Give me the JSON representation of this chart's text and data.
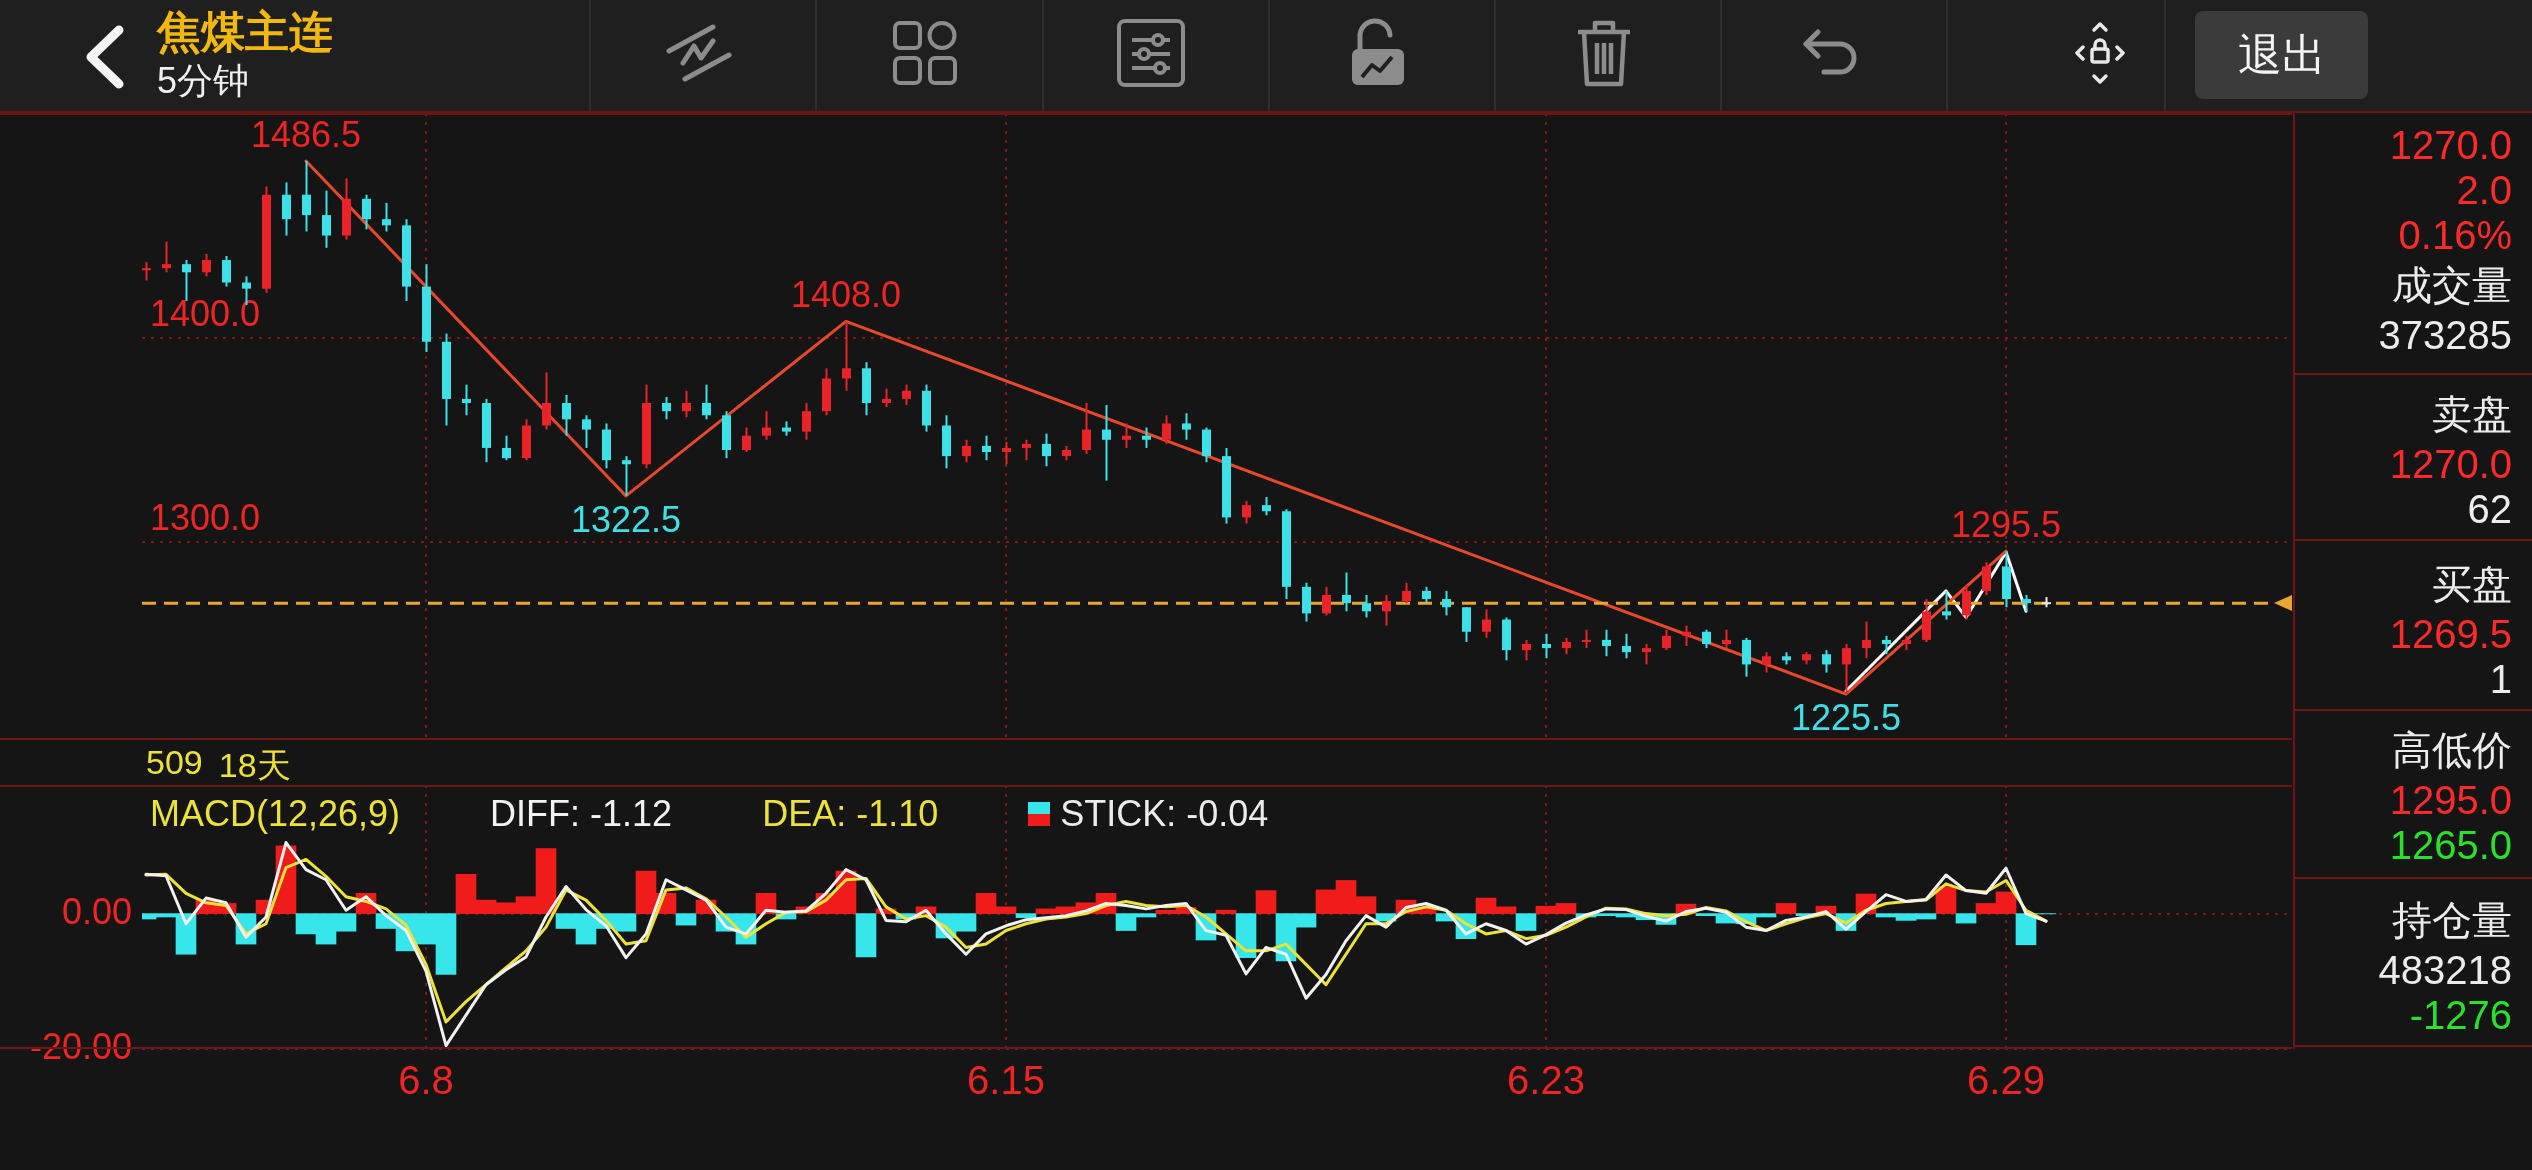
{
  "chart_data": [
    {
      "type": "candlestick",
      "title": "焦煤主连",
      "subtitle": "5分钟",
      "marker": "none",
      "grid": true,
      "tick_labels": "y",
      "categories": [
        null,
        null,
        null,
        null,
        null,
        null,
        null,
        null,
        null,
        null,
        null,
        null,
        null,
        null,
        "6.8",
        null,
        null,
        null,
        null,
        null,
        null,
        null,
        null,
        null,
        null,
        null,
        null,
        null,
        null,
        null,
        null,
        null,
        null,
        null,
        null,
        null,
        null,
        null,
        null,
        null,
        null,
        null,
        null,
        "6.15",
        null,
        null,
        null,
        null,
        null,
        null,
        null,
        null,
        null,
        null,
        null,
        null,
        null,
        null,
        null,
        null,
        null,
        null,
        null,
        null,
        null,
        null,
        null,
        null,
        null,
        null,
        "6.23",
        null,
        null,
        null,
        null,
        null,
        null,
        null,
        null,
        null,
        null,
        null,
        null,
        null,
        null,
        null,
        null,
        null,
        null,
        null,
        null,
        null,
        null,
        "6.29",
        null,
        null
      ],
      "ylim": [
        1203,
        1510
      ],
      "yticks": [
        {
          "value": 1400,
          "label": "1400.0"
        },
        {
          "value": 1300,
          "label": "1300.0"
        }
      ],
      "ref_lines": [
        {
          "axis": "y",
          "value": 1270,
          "color": "#e8a532",
          "line_style": "dashed"
        }
      ],
      "annotations": [
        "509",
        "18天"
      ],
      "series": [
        {
          "type": "candlestick",
          "ohlc": [
            [
              1433,
              1437,
              1428,
              1434
            ],
            [
              1434,
              1447,
              1432,
              1436
            ],
            [
              1436,
              1438,
              1418,
              1432
            ],
            [
              1432,
              1441,
              1430,
              1438
            ],
            [
              1438,
              1440,
              1425,
              1427
            ],
            [
              1427,
              1430,
              1416,
              1424
            ],
            [
              1424,
              1474,
              1422,
              1470
            ],
            [
              1470,
              1476,
              1450,
              1458
            ],
            [
              1470,
              1486.5,
              1452,
              1460
            ],
            [
              1460,
              1472,
              1444,
              1450
            ],
            [
              1450,
              1478,
              1448,
              1468
            ],
            [
              1468,
              1470,
              1453,
              1458
            ],
            [
              1458,
              1466,
              1452,
              1455
            ],
            [
              1455,
              1458,
              1418,
              1425
            ],
            [
              1425,
              1436,
              1393,
              1398
            ],
            [
              1398,
              1402,
              1357,
              1370
            ],
            [
              1370,
              1377,
              1362,
              1368
            ],
            [
              1368,
              1370,
              1339,
              1346
            ],
            [
              1346,
              1352,
              1340,
              1341
            ],
            [
              1341,
              1360,
              1340,
              1357
            ],
            [
              1357,
              1383,
              1355,
              1368
            ],
            [
              1368,
              1372,
              1352,
              1360
            ],
            [
              1360,
              1362,
              1346,
              1355
            ],
            [
              1355,
              1358,
              1336,
              1340
            ],
            [
              1340,
              1342,
              1322.5,
              1338
            ],
            [
              1338,
              1377,
              1336,
              1368
            ],
            [
              1368,
              1371,
              1360,
              1364
            ],
            [
              1364,
              1374,
              1361,
              1368
            ],
            [
              1368,
              1377,
              1360,
              1362
            ],
            [
              1362,
              1364,
              1341,
              1345
            ],
            [
              1345,
              1356,
              1344,
              1352
            ],
            [
              1352,
              1364,
              1350,
              1356
            ],
            [
              1356,
              1359,
              1352,
              1354
            ],
            [
              1354,
              1368,
              1350,
              1364
            ],
            [
              1364,
              1385,
              1362,
              1380
            ],
            [
              1380,
              1408,
              1374,
              1385
            ],
            [
              1385,
              1388,
              1362,
              1368
            ],
            [
              1368,
              1375,
              1366,
              1370
            ],
            [
              1370,
              1377,
              1367,
              1374
            ],
            [
              1374,
              1377,
              1354,
              1357
            ],
            [
              1357,
              1362,
              1336,
              1342
            ],
            [
              1342,
              1350,
              1339,
              1347
            ],
            [
              1347,
              1352,
              1340,
              1344
            ],
            [
              1344,
              1349,
              1338,
              1346
            ],
            [
              1346,
              1350,
              1340,
              1348
            ],
            [
              1348,
              1353,
              1337,
              1342
            ],
            [
              1342,
              1347,
              1340,
              1345
            ],
            [
              1345,
              1368,
              1343,
              1355
            ],
            [
              1355,
              1367,
              1330,
              1350
            ],
            [
              1350,
              1358,
              1346,
              1352
            ],
            [
              1352,
              1356,
              1346,
              1350
            ],
            [
              1350,
              1362,
              1348,
              1358
            ],
            [
              1358,
              1363,
              1350,
              1355
            ],
            [
              1355,
              1356,
              1339,
              1342
            ],
            [
              1342,
              1346,
              1309,
              1312
            ],
            [
              1312,
              1320,
              1309,
              1318
            ],
            [
              1318,
              1322,
              1313,
              1315
            ],
            [
              1315,
              1316,
              1272,
              1278
            ],
            [
              1278,
              1280,
              1261,
              1265
            ],
            [
              1265,
              1278,
              1264,
              1274
            ],
            [
              1274,
              1285,
              1266,
              1270
            ],
            [
              1270,
              1274,
              1263,
              1266
            ],
            [
              1266,
              1274,
              1259,
              1271
            ],
            [
              1271,
              1280,
              1270,
              1276
            ],
            [
              1276,
              1278,
              1270,
              1272
            ],
            [
              1272,
              1276,
              1264,
              1268
            ],
            [
              1268,
              1268,
              1251,
              1256
            ],
            [
              1256,
              1267,
              1253,
              1262
            ],
            [
              1262,
              1263,
              1242,
              1247
            ],
            [
              1247,
              1252,
              1242,
              1250
            ],
            [
              1250,
              1255,
              1243,
              1248
            ],
            [
              1248,
              1253,
              1245,
              1251
            ],
            [
              1251,
              1257,
              1248,
              1252
            ],
            [
              1252,
              1257,
              1244,
              1249
            ],
            [
              1249,
              1255,
              1243,
              1246
            ],
            [
              1246,
              1250,
              1240,
              1248
            ],
            [
              1248,
              1257,
              1247,
              1254
            ],
            [
              1254,
              1259,
              1249,
              1256
            ],
            [
              1256,
              1257,
              1248,
              1250
            ],
            [
              1250,
              1257,
              1248,
              1252
            ],
            [
              1252,
              1253,
              1234,
              1240
            ],
            [
              1240,
              1246,
              1236,
              1244
            ],
            [
              1244,
              1246,
              1240,
              1242
            ],
            [
              1242,
              1246,
              1240,
              1245
            ],
            [
              1245,
              1247,
              1236,
              1240
            ],
            [
              1240,
              1250,
              1225.5,
              1248
            ],
            [
              1248,
              1261,
              1243,
              1252
            ],
            [
              1252,
              1254,
              1245,
              1250
            ],
            [
              1250,
              1254,
              1247,
              1252
            ],
            [
              1252,
              1272,
              1251,
              1266
            ],
            [
              1266,
              1276,
              1262,
              1264
            ],
            [
              1264,
              1279,
              1262,
              1276
            ],
            [
              1276,
              1290,
              1274,
              1288
            ],
            [
              1288,
              1295.5,
              1268,
              1272
            ],
            [
              1272,
              1274,
              1266,
              1270
            ],
            [
              1270,
              1273,
              1268,
              1270
            ]
          ],
          "colors": [
            "#e8232a",
            "#e8232a",
            "#3de0e6",
            "#e8232a",
            "#3de0e6",
            "#3de0e6",
            "#e8232a",
            "#3de0e6",
            "#3de0e6",
            "#3de0e6",
            "#e8232a",
            "#3de0e6",
            "#3de0e6",
            "#3de0e6",
            "#3de0e6",
            "#3de0e6",
            "#3de0e6",
            "#3de0e6",
            "#3de0e6",
            "#e8232a",
            "#e8232a",
            "#3de0e6",
            "#3de0e6",
            "#3de0e6",
            "#3de0e6",
            "#e8232a",
            "#3de0e6",
            "#e8232a",
            "#3de0e6",
            "#3de0e6",
            "#e8232a",
            "#e8232a",
            "#3de0e6",
            "#e8232a",
            "#e8232a",
            "#e8232a",
            "#3de0e6",
            "#e8232a",
            "#e8232a",
            "#3de0e6",
            "#3de0e6",
            "#e8232a",
            "#3de0e6",
            "#e8232a",
            "#e8232a",
            "#3de0e6",
            "#e8232a",
            "#e8232a",
            "#3de0e6",
            "#e8232a",
            "#3de0e6",
            "#e8232a",
            "#3de0e6",
            "#3de0e6",
            "#3de0e6",
            "#e8232a",
            "#3de0e6",
            "#3de0e6",
            "#3de0e6",
            "#e8232a",
            "#3de0e6",
            "#3de0e6",
            "#e8232a",
            "#e8232a",
            "#3de0e6",
            "#3de0e6",
            "#3de0e6",
            "#e8232a",
            "#3de0e6",
            "#e8232a",
            "#3de0e6",
            "#e8232a",
            "#e8232a",
            "#3de0e6",
            "#3de0e6",
            "#e8232a",
            "#e8232a",
            "#e8232a",
            "#3de0e6",
            "#e8232a",
            "#3de0e6",
            "#e8232a",
            "#3de0e6",
            "#e8232a",
            "#3de0e6",
            "#e8232a",
            "#e8232a",
            "#3de0e6",
            "#e8232a",
            "#e8232a",
            "#3de0e6",
            "#e8232a",
            "#e8232a",
            "#3de0e6",
            "#3de0e6",
            "#e6e6e6"
          ]
        },
        {
          "type": "line",
          "color": "#e8482c",
          "values": [
            null,
            null,
            null,
            null,
            null,
            null,
            null,
            null,
            1486.5,
            null,
            null,
            null,
            null,
            null,
            null,
            null,
            null,
            null,
            null,
            null,
            null,
            null,
            null,
            null,
            1322.5,
            null,
            null,
            null,
            null,
            null,
            null,
            null,
            null,
            null,
            null,
            1408,
            null,
            null,
            null,
            null,
            null,
            null,
            null,
            null,
            null,
            null,
            null,
            null,
            null,
            null,
            null,
            null,
            null,
            null,
            null,
            null,
            null,
            null,
            null,
            null,
            null,
            null,
            null,
            null,
            null,
            null,
            null,
            null,
            null,
            null,
            null,
            null,
            null,
            null,
            null,
            null,
            null,
            null,
            null,
            null,
            null,
            null,
            null,
            null,
            null,
            1225.5,
            null,
            null,
            null,
            null,
            null,
            null,
            null,
            1295.5,
            null,
            null
          ],
          "value_labels": [
            null,
            null,
            null,
            null,
            null,
            null,
            null,
            null,
            "1486.5",
            null,
            null,
            null,
            null,
            null,
            null,
            null,
            null,
            null,
            null,
            null,
            null,
            null,
            null,
            null,
            "1322.5",
            null,
            null,
            null,
            null,
            null,
            null,
            null,
            null,
            null,
            null,
            "1408.0",
            null,
            null,
            null,
            null,
            null,
            null,
            null,
            null,
            null,
            null,
            null,
            null,
            null,
            null,
            null,
            null,
            null,
            null,
            null,
            null,
            null,
            null,
            null,
            null,
            null,
            null,
            null,
            null,
            null,
            null,
            null,
            null,
            null,
            null,
            null,
            null,
            null,
            null,
            null,
            null,
            null,
            null,
            null,
            null,
            null,
            null,
            null,
            null,
            null,
            "1225.5",
            null,
            null,
            null,
            null,
            null,
            null,
            null,
            "1295.5",
            null,
            null
          ]
        },
        {
          "type": "line",
          "color": "#ffffff",
          "values": [
            null,
            null,
            null,
            null,
            null,
            null,
            null,
            null,
            null,
            null,
            null,
            null,
            null,
            null,
            null,
            null,
            null,
            null,
            null,
            null,
            null,
            null,
            null,
            null,
            null,
            null,
            null,
            null,
            null,
            null,
            null,
            null,
            null,
            null,
            null,
            null,
            null,
            null,
            null,
            null,
            null,
            null,
            null,
            null,
            null,
            null,
            null,
            null,
            null,
            null,
            null,
            null,
            null,
            null,
            null,
            null,
            null,
            null,
            null,
            null,
            null,
            null,
            null,
            null,
            null,
            null,
            null,
            null,
            null,
            null,
            null,
            null,
            null,
            null,
            null,
            null,
            null,
            null,
            null,
            null,
            null,
            null,
            null,
            null,
            null,
            1227,
            null,
            null,
            null,
            null,
            1276,
            1263,
            null,
            1295,
            1266,
            null
          ]
        }
      ]
    },
    {
      "type": "line",
      "legend_title": "MACD(12,26,9)",
      "legend": "top left",
      "marker": "none",
      "grid": true,
      "categories": [
        null,
        null,
        null,
        null,
        null,
        null,
        null,
        null,
        null,
        null,
        null,
        null,
        null,
        null,
        "6.8",
        null,
        null,
        null,
        null,
        null,
        null,
        null,
        null,
        null,
        null,
        null,
        null,
        null,
        null,
        null,
        null,
        null,
        null,
        null,
        null,
        null,
        null,
        null,
        null,
        null,
        null,
        null,
        null,
        "6.15",
        null,
        null,
        null,
        null,
        null,
        null,
        null,
        null,
        null,
        null,
        null,
        null,
        null,
        null,
        null,
        null,
        null,
        null,
        null,
        null,
        null,
        null,
        null,
        null,
        null,
        null,
        "6.23",
        null,
        null,
        null,
        null,
        null,
        null,
        null,
        null,
        null,
        null,
        null,
        null,
        null,
        null,
        null,
        null,
        null,
        null,
        null,
        null,
        null,
        null,
        "6.29",
        null,
        null
      ],
      "ylim": [
        -20,
        19
      ],
      "yticks": [
        {
          "value": 0,
          "label": "0.00"
        },
        {
          "value": -20,
          "label": "-20.00"
        }
      ],
      "series": [
        {
          "name": "DIFF: -1.12",
          "type": "line",
          "color": "#f2f2f2",
          "values": [
            5.8,
            5.6,
            -1.5,
            2.3,
            1.6,
            -3.5,
            -0.5,
            10.5,
            6.5,
            5,
            0.5,
            2.5,
            -0.3,
            -2.5,
            -8.5,
            -19.5,
            -15,
            -10.5,
            -8.3,
            -6.4,
            -0.5,
            4,
            0.6,
            -1.8,
            -6.5,
            -3,
            5,
            3.5,
            2,
            -2,
            -3,
            0.5,
            0.2,
            0.4,
            3,
            6.5,
            5,
            -1,
            -1.2,
            0.5,
            -3,
            -6,
            -3,
            -1.8,
            -0.9,
            -0.6,
            -0.3,
            0.4,
            1.5,
            1.2,
            0.7,
            1.2,
            1.5,
            -2.5,
            -3.2,
            -8.9,
            -5,
            -6,
            -12.5,
            -9,
            -4,
            -0.3,
            -2,
            0.9,
            1.5,
            0.5,
            -3,
            -1.5,
            -2.5,
            -4.5,
            -3.1,
            -1.4,
            -0.2,
            0.7,
            0.6,
            -0.4,
            -1.1,
            0.3,
            0.8,
            0.2,
            -2,
            -2.5,
            -1,
            -0.5,
            0.3,
            -2.3,
            0.3,
            2.8,
            1.8,
            2.1,
            5.7,
            3.4,
            3,
            6.7,
            0,
            -1.12
          ]
        },
        {
          "name": "DEA: -1.10",
          "type": "line",
          "color": "#ece23a",
          "values": [
            5.7,
            5.8,
            3,
            1.6,
            1.2,
            -3,
            -1.5,
            6.8,
            8,
            5.5,
            2.5,
            1.8,
            0.7,
            -1.7,
            -7.5,
            -16,
            -13,
            -10.5,
            -8,
            -5.5,
            -2,
            3.5,
            2,
            -1,
            -4.5,
            -4,
            3.5,
            3.8,
            2.2,
            -0.5,
            -3.5,
            -1.5,
            0.2,
            0.3,
            2,
            5,
            5.2,
            1,
            -0.8,
            -0.3,
            -2,
            -5,
            -4.5,
            -2.5,
            -1.5,
            -0.8,
            -0.5,
            0,
            1.2,
            1.8,
            1.2,
            1,
            1.2,
            -0.5,
            -3,
            -5.5,
            -5.5,
            -4.5,
            -7.5,
            -10.5,
            -6,
            -1.5,
            -1.5,
            0.3,
            1,
            0.5,
            -1.5,
            -3,
            -2.5,
            -3.7,
            -3.2,
            -2,
            -0.5,
            0.8,
            0.7,
            0,
            -0.3,
            -0.1,
            0.9,
            0.4,
            -1.2,
            -2.5,
            -1.5,
            -0.6,
            0,
            -1.4,
            0.5,
            1.5,
            1.8,
            2,
            4.4,
            3.4,
            3.2,
            4.9,
            0.5,
            -1.1
          ]
        },
        {
          "name": "STICK: -0.04",
          "type": "bar",
          "values": [
            -0.8,
            -0.5,
            -6,
            2,
            1.5,
            -4.5,
            2,
            10,
            -3,
            -4.5,
            -2.6,
            3,
            -2.2,
            -5.5,
            -4.5,
            -9,
            5.8,
            2,
            1.6,
            2.5,
            9.6,
            -2.2,
            -4.5,
            -2.2,
            -2.6,
            6.3,
            3,
            -1.7,
            2,
            -2.6,
            -4.5,
            3,
            -0.8,
            1,
            3,
            6.3,
            -6.4,
            0.7,
            -0.8,
            1,
            -3.6,
            -2.6,
            3,
            1,
            -0.6,
            0.7,
            1,
            1.6,
            3,
            -2.5,
            -0.5,
            0.5,
            0.9,
            -3.9,
            0.5,
            -6.5,
            3.4,
            -7,
            -2,
            3.5,
            4.9,
            2.5,
            -1.1,
            2,
            0.8,
            -1.1,
            -3.7,
            2.3,
            1,
            -2.5,
            1.1,
            1.5,
            -0.5,
            -0.3,
            -0.5,
            -0.9,
            -1.6,
            1.4,
            -0.3,
            -1.4,
            -1.5,
            -0.5,
            1.5,
            -0.3,
            1.1,
            -2.5,
            2.9,
            -0.5,
            -1,
            -0.8,
            4,
            -1.4,
            1.5,
            3.2,
            -4.6,
            -0.04
          ],
          "colors": [
            "#36e6ea",
            "#36e6ea",
            "#36e6ea",
            "#f01c1c",
            "#f01c1c",
            "#36e6ea",
            "#f01c1c",
            "#f01c1c",
            "#36e6ea",
            "#36e6ea",
            "#36e6ea",
            "#f01c1c",
            "#36e6ea",
            "#36e6ea",
            "#36e6ea",
            "#36e6ea",
            "#f01c1c",
            "#f01c1c",
            "#f01c1c",
            "#f01c1c",
            "#f01c1c",
            "#36e6ea",
            "#36e6ea",
            "#36e6ea",
            "#36e6ea",
            "#f01c1c",
            "#f01c1c",
            "#36e6ea",
            "#f01c1c",
            "#36e6ea",
            "#36e6ea",
            "#f01c1c",
            "#36e6ea",
            "#f01c1c",
            "#f01c1c",
            "#f01c1c",
            "#36e6ea",
            "#f01c1c",
            "#36e6ea",
            "#f01c1c",
            "#36e6ea",
            "#36e6ea",
            "#f01c1c",
            "#f01c1c",
            "#36e6ea",
            "#f01c1c",
            "#f01c1c",
            "#f01c1c",
            "#f01c1c",
            "#36e6ea",
            "#36e6ea",
            "#f01c1c",
            "#f01c1c",
            "#36e6ea",
            "#f01c1c",
            "#36e6ea",
            "#f01c1c",
            "#36e6ea",
            "#36e6ea",
            "#f01c1c",
            "#f01c1c",
            "#f01c1c",
            "#36e6ea",
            "#f01c1c",
            "#f01c1c",
            "#36e6ea",
            "#36e6ea",
            "#f01c1c",
            "#f01c1c",
            "#36e6ea",
            "#f01c1c",
            "#f01c1c",
            "#36e6ea",
            "#36e6ea",
            "#36e6ea",
            "#36e6ea",
            "#36e6ea",
            "#f01c1c",
            "#36e6ea",
            "#36e6ea",
            "#36e6ea",
            "#36e6ea",
            "#f01c1c",
            "#36e6ea",
            "#f01c1c",
            "#36e6ea",
            "#f01c1c",
            "#36e6ea",
            "#36e6ea",
            "#36e6ea",
            "#f01c1c",
            "#36e6ea",
            "#f01c1c",
            "#f01c1c",
            "#36e6ea",
            "#36e6ea"
          ]
        }
      ]
    },
    {
      "type": "other",
      "annotations": [
        "退出",
        "1270.0",
        "2.0",
        "0.16%",
        "成交量",
        "373285",
        "卖盘",
        "1270.0",
        "62",
        "买盘",
        "1269.5",
        "1",
        "高低价",
        "1295.0",
        "1265.0",
        "持仓量",
        "483218",
        "-1276"
      ]
    }
  ]
}
